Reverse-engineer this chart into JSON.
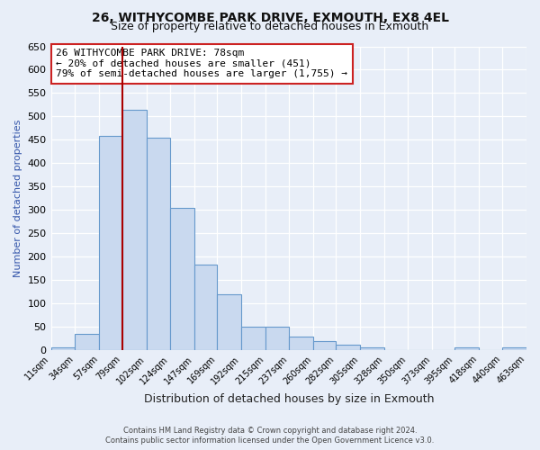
{
  "title": "26, WITHYCOMBE PARK DRIVE, EXMOUTH, EX8 4EL",
  "subtitle": "Size of property relative to detached houses in Exmouth",
  "xlabel": "Distribution of detached houses by size in Exmouth",
  "ylabel": "Number of detached properties",
  "bin_edges": [
    11,
    34,
    57,
    79,
    102,
    124,
    147,
    169,
    192,
    215,
    237,
    260,
    282,
    305,
    328,
    350,
    373,
    395,
    418,
    440,
    463
  ],
  "bar_vals": [
    5,
    35,
    458,
    515,
    455,
    305,
    183,
    120,
    50,
    50,
    28,
    20,
    12,
    5,
    0,
    0,
    0,
    5,
    0,
    5
  ],
  "bin_labels": [
    "11sqm",
    "34sqm",
    "57sqm",
    "79sqm",
    "102sqm",
    "124sqm",
    "147sqm",
    "169sqm",
    "192sqm",
    "215sqm",
    "237sqm",
    "260sqm",
    "282sqm",
    "305sqm",
    "328sqm",
    "350sqm",
    "373sqm",
    "395sqm",
    "418sqm",
    "440sqm",
    "463sqm"
  ],
  "bar_color": "#c9d9ef",
  "bar_edge_color": "#6699cc",
  "vline_x": 79,
  "vline_color": "#aa0000",
  "annotation_text": "26 WITHYCOMBE PARK DRIVE: 78sqm\n← 20% of detached houses are smaller (451)\n79% of semi-detached houses are larger (1,755) →",
  "annotation_box_facecolor": "#ffffff",
  "annotation_box_edgecolor": "#cc2222",
  "ylim": [
    0,
    650
  ],
  "yticks": [
    0,
    50,
    100,
    150,
    200,
    250,
    300,
    350,
    400,
    450,
    500,
    550,
    600,
    650
  ],
  "footer_line1": "Contains HM Land Registry data © Crown copyright and database right 2024.",
  "footer_line2": "Contains public sector information licensed under the Open Government Licence v3.0.",
  "background_color": "#e8eef8",
  "title_fontsize": 10,
  "subtitle_fontsize": 9,
  "ylabel_color": "#3355aa"
}
